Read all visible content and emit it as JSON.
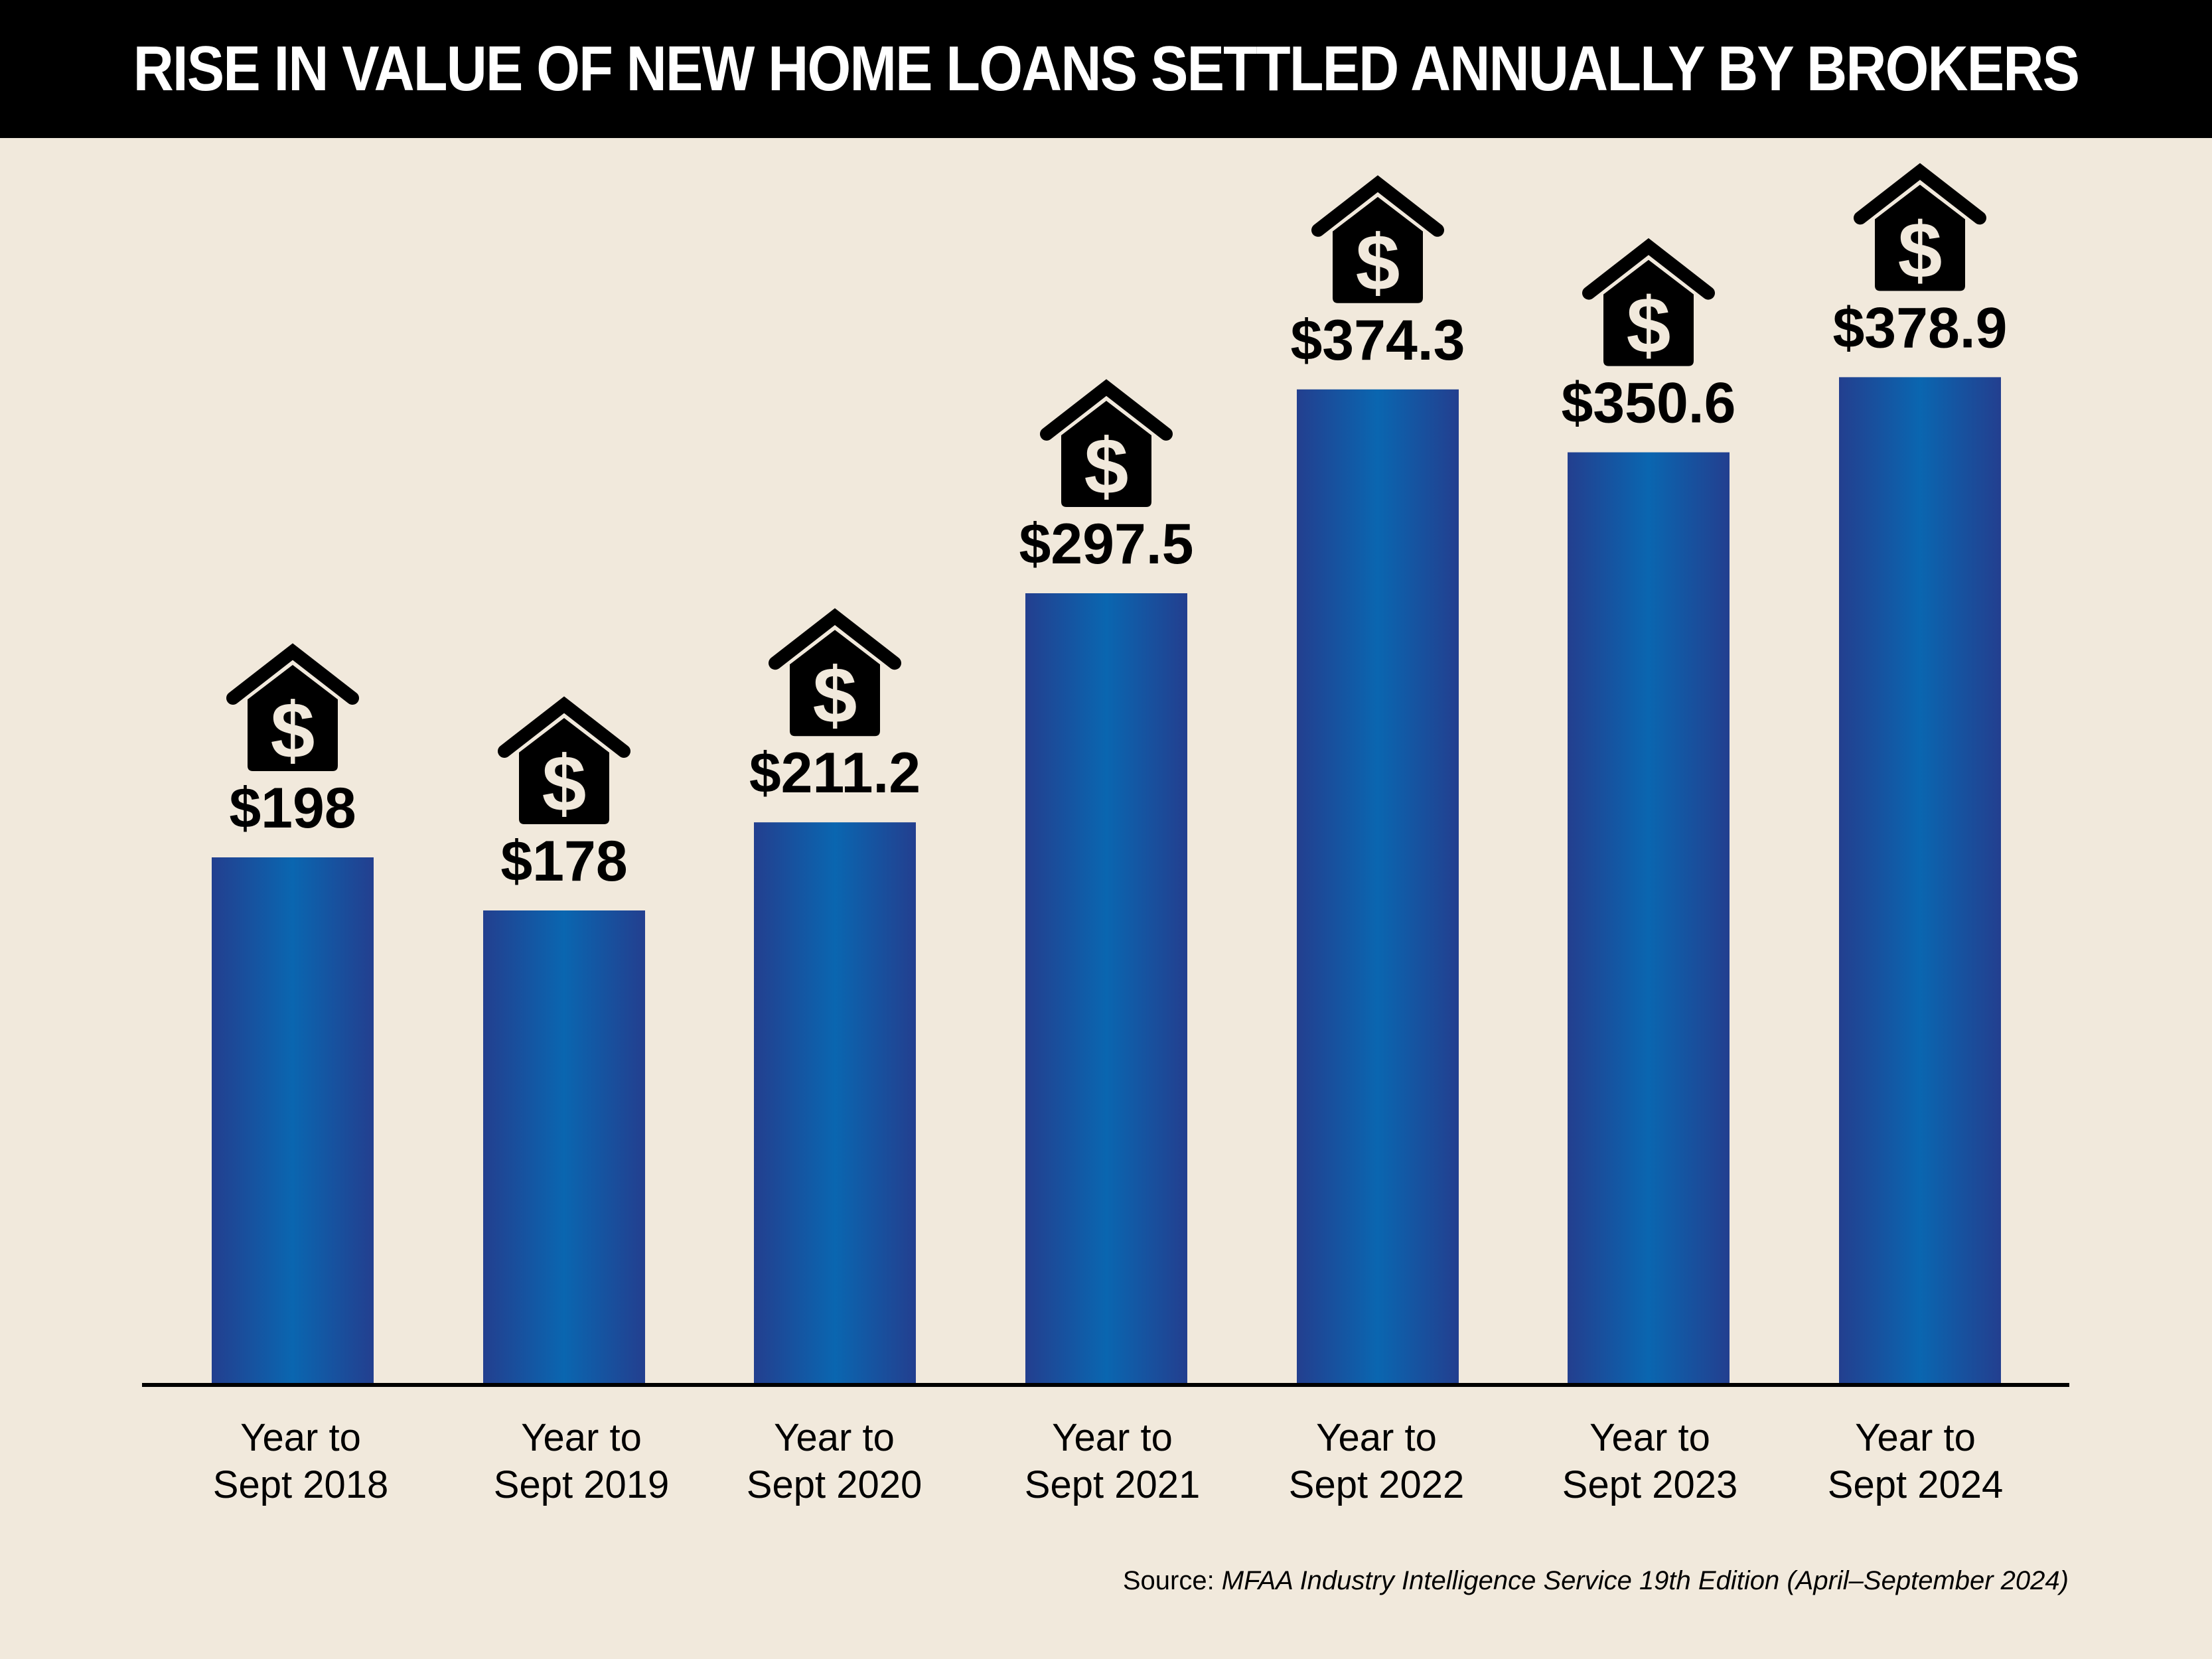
{
  "chart_data": {
    "type": "bar",
    "title": "RISE IN VALUE OF NEW HOME LOANS SETTLED ANNUALLY BY BROKERS",
    "categories": [
      [
        "Year to",
        "Sept 2018"
      ],
      [
        "Year to",
        "Sept 2019"
      ],
      [
        "Year to",
        "Sept 2020"
      ],
      [
        "Year to",
        "Sept 2021"
      ],
      [
        "Year to",
        "Sept 2022"
      ],
      [
        "Year to",
        "Sept 2023"
      ],
      [
        "Year to",
        "Sept 2024"
      ]
    ],
    "values": [
      198,
      178,
      211.2,
      297.5,
      374.3,
      350.6,
      378.9
    ],
    "value_labels": [
      "$198",
      "$178",
      "$211.2",
      "$297.5",
      "$374.3",
      "$350.6",
      "$378.9"
    ],
    "xlabel": "",
    "ylabel": "",
    "grid": false,
    "legend": "none",
    "bar_icon": "house-dollar-icon",
    "colors": {
      "bar_edge": "#233f8f",
      "bar_center": "#0a66b0",
      "background": "#f1e9dc",
      "title_bar": "#000000",
      "title_text": "#ffffff",
      "axis": "#000000"
    }
  },
  "source": {
    "prefix": "Source: ",
    "title": "MFAA Industry Intelligence Service 19th Edition (April–September 2024)"
  }
}
